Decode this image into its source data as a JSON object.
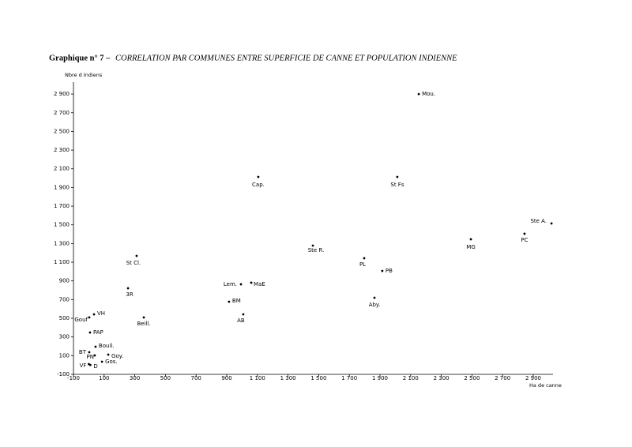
{
  "chart_data": {
    "type": "scatter",
    "title": "Graphique n° 7 –",
    "subtitle": "CORRELATION PAR COMMUNES ENTRE SUPERFICIE DE CANNE ET POPULATION INDIENNE",
    "ylabel": "Nbre d Indiens",
    "xlabel": "Ha de canne",
    "color": "#000000",
    "xlim": [
      -100,
      3050
    ],
    "ylim": [
      -100,
      3000
    ],
    "xticks": [
      -100,
      100,
      300,
      500,
      700,
      900,
      {
        "value": 1100,
        "label": "1 100"
      },
      {
        "value": 1300,
        "label": "1 300"
      },
      {
        "value": 1500,
        "label": "1 500"
      },
      {
        "value": 1700,
        "label": "1 700"
      },
      {
        "value": 1900,
        "label": "1 900"
      },
      {
        "value": 2100,
        "label": "2 100"
      },
      {
        "value": 2300,
        "label": "2 300"
      },
      {
        "value": 2500,
        "label": "2 500"
      },
      {
        "value": 2700,
        "label": "2 700"
      },
      {
        "value": 2900,
        "label": "2 900"
      }
    ],
    "yticks": [
      -100,
      100,
      300,
      500,
      700,
      900,
      {
        "value": 1100,
        "label": "1 100"
      },
      {
        "value": 1300,
        "label": "1 300"
      },
      {
        "value": 1500,
        "label": "1 500"
      },
      {
        "value": 1700,
        "label": "1 700"
      },
      {
        "value": 1900,
        "label": "1 900"
      },
      {
        "value": 2100,
        "label": "2 100"
      },
      {
        "value": 2300,
        "label": "2 300"
      },
      {
        "value": 2500,
        "label": "2 500"
      },
      {
        "value": 2700,
        "label": "2 700"
      },
      {
        "value": 2900,
        "label": "2 900"
      }
    ],
    "point_labels": [
      "Mou.",
      "Cap.",
      "St Fs",
      "Ste A.",
      "PC",
      "MG",
      "Ste R.",
      "PL",
      "PB",
      "Aby.",
      "St Cl.",
      "3R",
      "Lem.",
      "MaE",
      "BM",
      "AB",
      "Beill.",
      "VH",
      "Gouf",
      "PAP",
      "Bouil.",
      "BT",
      "PN",
      "Goy.",
      "Gos.",
      "VF",
      "D"
    ],
    "x": [
      2153,
      1106,
      2013,
      3019,
      2843,
      2493,
      1462,
      1797,
      1915,
      1864,
      312,
      256,
      993,
      1060,
      915,
      1008,
      359,
      34,
      3,
      8,
      44,
      3,
      39,
      127,
      86,
      0,
      10
    ],
    "values": [
      2900,
      2013,
      2013,
      1515,
      1405,
      1346,
      1278,
      1143,
      1007,
      720,
      1168,
      821,
      864,
      881,
      678,
      542,
      509,
      542,
      509,
      348,
      196,
      137,
      103,
      111,
      35,
      10,
      0
    ]
  }
}
